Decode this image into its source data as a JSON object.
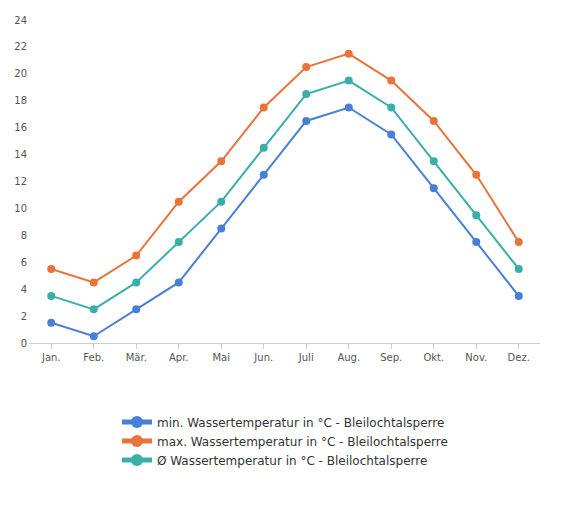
{
  "chart_data": {
    "type": "line",
    "categories": [
      "Jan.",
      "Feb.",
      "Mär.",
      "Apr.",
      "Mai",
      "Jun.",
      "Juli",
      "Aug.",
      "Sep.",
      "Okt.",
      "Nov.",
      "Dez."
    ],
    "series": [
      {
        "name": "min. Wassertemperatur in °C - Bleilochtalsperre",
        "color": "#4a7fd6",
        "values": [
          1.5,
          0.5,
          2.5,
          4.5,
          8.5,
          12.5,
          16.5,
          17.5,
          15.5,
          11.5,
          7.5,
          3.5
        ]
      },
      {
        "name": "max. Wassertemperatur in °C - Bleilochtalsperre",
        "color": "#e8743b",
        "values": [
          5.5,
          4.5,
          6.5,
          10.5,
          13.5,
          17.5,
          20.5,
          21.5,
          19.5,
          16.5,
          12.5,
          7.5
        ]
      },
      {
        "name": "Ø Wassertemperatur in °C - Bleilochtalsperre",
        "color": "#3aafaa",
        "values": [
          3.5,
          2.5,
          4.5,
          7.5,
          10.5,
          14.5,
          18.5,
          19.5,
          17.5,
          13.5,
          9.5,
          5.5
        ]
      }
    ],
    "ylim": [
      0,
      24
    ],
    "yticks": [
      0,
      2,
      4,
      6,
      8,
      10,
      12,
      14,
      16,
      18,
      20,
      22,
      24
    ],
    "grid": false,
    "legend": "bottom",
    "marker": "circle"
  }
}
